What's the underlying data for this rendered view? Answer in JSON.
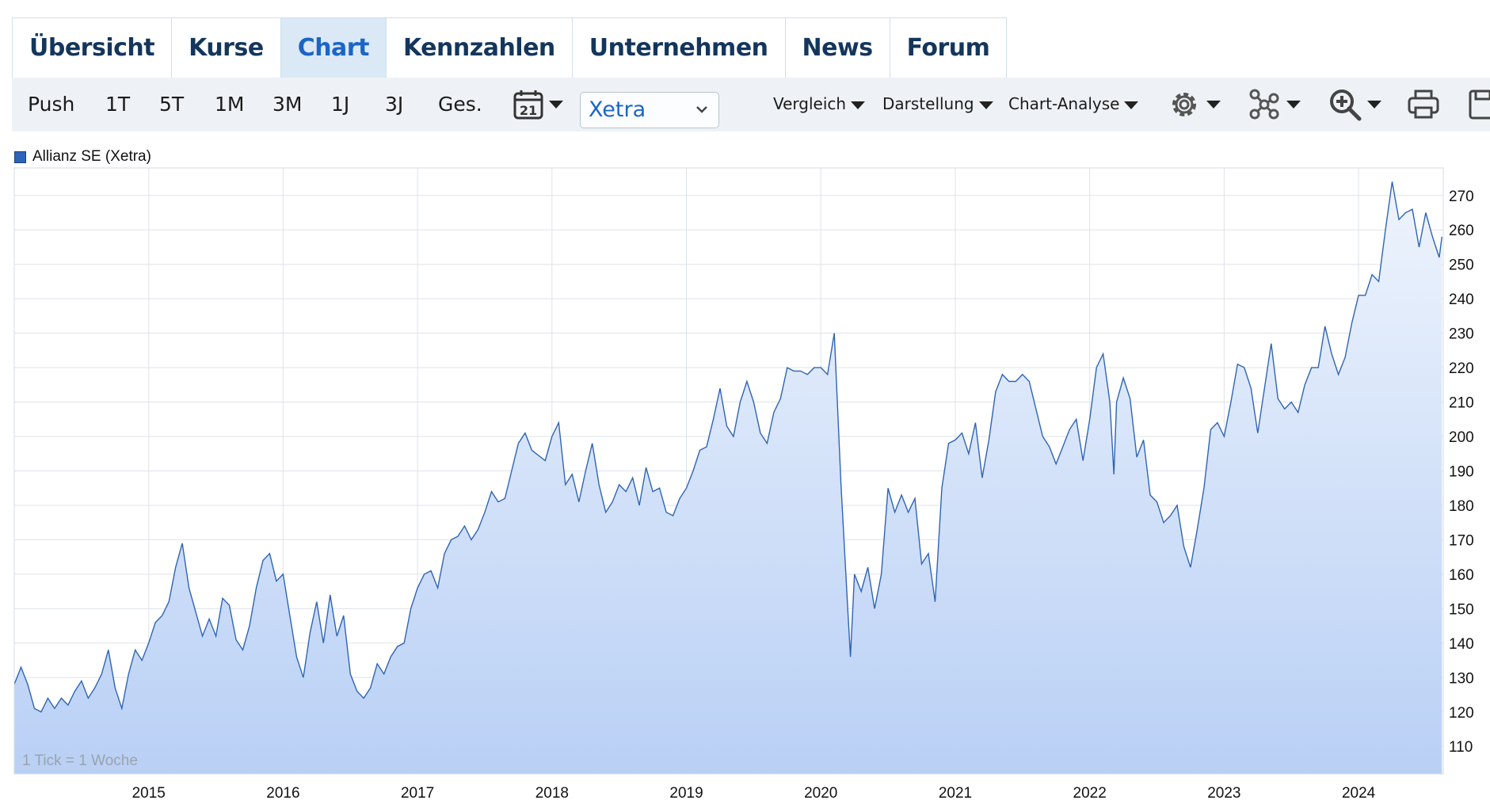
{
  "tabs": [
    {
      "label": "Übersicht",
      "active": false
    },
    {
      "label": "Kurse",
      "active": false
    },
    {
      "label": "Chart",
      "active": true
    },
    {
      "label": "Kennzahlen",
      "active": false
    },
    {
      "label": "Unternehmen",
      "active": false
    },
    {
      "label": "News",
      "active": false
    },
    {
      "label": "Forum",
      "active": false
    }
  ],
  "toolbar": {
    "ranges": [
      "Push",
      "1T",
      "5T",
      "1M",
      "3M",
      "1J",
      "3J",
      "Ges."
    ],
    "calendar_day": "21",
    "exchange_select": "Xetra",
    "dropdowns": [
      "Vergleich",
      "Darstellung",
      "Chart-Analyse"
    ],
    "icons": [
      "calendar-icon",
      "gear-icon",
      "indicator-network-icon",
      "zoom-in-icon",
      "print-icon",
      "save-icon"
    ]
  },
  "legend": {
    "label": "Allianz SE (Xetra)",
    "color": "#2d63b8"
  },
  "tick_note": "1 Tick = 1 Woche",
  "colors": {
    "line": "#2f64b6",
    "fill_top": "#eef4fd",
    "fill_bottom": "#b9d0f5",
    "grid": "#dde3ea"
  },
  "chart_data": {
    "type": "area",
    "series": [
      {
        "name": "Allianz SE (Xetra)",
        "values_x": "year",
        "values": [
          [
            2014.0,
            128
          ],
          [
            2014.05,
            133
          ],
          [
            2014.1,
            128
          ],
          [
            2014.15,
            121
          ],
          [
            2014.2,
            120
          ],
          [
            2014.25,
            124
          ],
          [
            2014.3,
            121
          ],
          [
            2014.35,
            124
          ],
          [
            2014.4,
            122
          ],
          [
            2014.45,
            126
          ],
          [
            2014.5,
            129
          ],
          [
            2014.55,
            124
          ],
          [
            2014.6,
            127
          ],
          [
            2014.65,
            131
          ],
          [
            2014.7,
            138
          ],
          [
            2014.75,
            127
          ],
          [
            2014.8,
            121
          ],
          [
            2014.85,
            131
          ],
          [
            2014.9,
            138
          ],
          [
            2014.95,
            135
          ],
          [
            2015.0,
            140
          ],
          [
            2015.05,
            146
          ],
          [
            2015.1,
            148
          ],
          [
            2015.15,
            152
          ],
          [
            2015.2,
            162
          ],
          [
            2015.25,
            169
          ],
          [
            2015.3,
            156
          ],
          [
            2015.35,
            149
          ],
          [
            2015.4,
            142
          ],
          [
            2015.45,
            147
          ],
          [
            2015.5,
            142
          ],
          [
            2015.55,
            153
          ],
          [
            2015.6,
            151
          ],
          [
            2015.65,
            141
          ],
          [
            2015.7,
            138
          ],
          [
            2015.75,
            145
          ],
          [
            2015.8,
            156
          ],
          [
            2015.85,
            164
          ],
          [
            2015.9,
            166
          ],
          [
            2015.95,
            158
          ],
          [
            2016.0,
            160
          ],
          [
            2016.05,
            148
          ],
          [
            2016.1,
            136
          ],
          [
            2016.15,
            130
          ],
          [
            2016.2,
            143
          ],
          [
            2016.25,
            152
          ],
          [
            2016.3,
            140
          ],
          [
            2016.35,
            154
          ],
          [
            2016.4,
            142
          ],
          [
            2016.45,
            148
          ],
          [
            2016.5,
            131
          ],
          [
            2016.55,
            126
          ],
          [
            2016.6,
            124
          ],
          [
            2016.65,
            127
          ],
          [
            2016.7,
            134
          ],
          [
            2016.75,
            131
          ],
          [
            2016.8,
            136
          ],
          [
            2016.85,
            139
          ],
          [
            2016.9,
            140
          ],
          [
            2016.95,
            150
          ],
          [
            2017.0,
            156
          ],
          [
            2017.05,
            160
          ],
          [
            2017.1,
            161
          ],
          [
            2017.15,
            156
          ],
          [
            2017.2,
            166
          ],
          [
            2017.25,
            170
          ],
          [
            2017.3,
            171
          ],
          [
            2017.35,
            174
          ],
          [
            2017.4,
            170
          ],
          [
            2017.45,
            173
          ],
          [
            2017.5,
            178
          ],
          [
            2017.55,
            184
          ],
          [
            2017.6,
            181
          ],
          [
            2017.65,
            182
          ],
          [
            2017.7,
            190
          ],
          [
            2017.75,
            198
          ],
          [
            2017.8,
            201
          ],
          [
            2017.85,
            196
          ],
          [
            2017.95,
            193
          ],
          [
            2018.0,
            200
          ],
          [
            2018.05,
            204
          ],
          [
            2018.1,
            186
          ],
          [
            2018.15,
            189
          ],
          [
            2018.2,
            181
          ],
          [
            2018.25,
            190
          ],
          [
            2018.3,
            198
          ],
          [
            2018.35,
            186
          ],
          [
            2018.4,
            178
          ],
          [
            2018.45,
            181
          ],
          [
            2018.5,
            186
          ],
          [
            2018.55,
            184
          ],
          [
            2018.6,
            188
          ],
          [
            2018.65,
            180
          ],
          [
            2018.7,
            191
          ],
          [
            2018.75,
            184
          ],
          [
            2018.8,
            185
          ],
          [
            2018.85,
            178
          ],
          [
            2018.9,
            177
          ],
          [
            2018.95,
            182
          ],
          [
            2019.0,
            185
          ],
          [
            2019.05,
            190
          ],
          [
            2019.1,
            196
          ],
          [
            2019.15,
            197
          ],
          [
            2019.2,
            205
          ],
          [
            2019.25,
            214
          ],
          [
            2019.3,
            203
          ],
          [
            2019.35,
            200
          ],
          [
            2019.4,
            210
          ],
          [
            2019.45,
            216
          ],
          [
            2019.5,
            210
          ],
          [
            2019.55,
            201
          ],
          [
            2019.6,
            198
          ],
          [
            2019.65,
            207
          ],
          [
            2019.7,
            211
          ],
          [
            2019.75,
            220
          ],
          [
            2019.8,
            219
          ],
          [
            2019.85,
            219
          ],
          [
            2019.9,
            218
          ],
          [
            2019.95,
            220
          ],
          [
            2020.0,
            220
          ],
          [
            2020.05,
            218
          ],
          [
            2020.1,
            230
          ],
          [
            2020.15,
            186
          ],
          [
            2020.2,
            150
          ],
          [
            2020.22,
            136
          ],
          [
            2020.25,
            160
          ],
          [
            2020.3,
            155
          ],
          [
            2020.35,
            162
          ],
          [
            2020.4,
            150
          ],
          [
            2020.45,
            160
          ],
          [
            2020.5,
            185
          ],
          [
            2020.55,
            178
          ],
          [
            2020.6,
            183
          ],
          [
            2020.65,
            178
          ],
          [
            2020.7,
            182
          ],
          [
            2020.75,
            163
          ],
          [
            2020.8,
            166
          ],
          [
            2020.85,
            152
          ],
          [
            2020.9,
            185
          ],
          [
            2020.95,
            198
          ],
          [
            2021.0,
            199
          ],
          [
            2021.05,
            201
          ],
          [
            2021.1,
            195
          ],
          [
            2021.15,
            204
          ],
          [
            2021.2,
            188
          ],
          [
            2021.25,
            199
          ],
          [
            2021.3,
            213
          ],
          [
            2021.35,
            218
          ],
          [
            2021.4,
            216
          ],
          [
            2021.45,
            216
          ],
          [
            2021.5,
            218
          ],
          [
            2021.55,
            216
          ],
          [
            2021.6,
            208
          ],
          [
            2021.65,
            200
          ],
          [
            2021.7,
            197
          ],
          [
            2021.75,
            192
          ],
          [
            2021.8,
            197
          ],
          [
            2021.85,
            202
          ],
          [
            2021.9,
            205
          ],
          [
            2021.95,
            193
          ],
          [
            2022.0,
            205
          ],
          [
            2022.05,
            220
          ],
          [
            2022.1,
            224
          ],
          [
            2022.15,
            210
          ],
          [
            2022.18,
            189
          ],
          [
            2022.2,
            210
          ],
          [
            2022.25,
            217
          ],
          [
            2022.3,
            211
          ],
          [
            2022.35,
            194
          ],
          [
            2022.4,
            199
          ],
          [
            2022.45,
            183
          ],
          [
            2022.5,
            181
          ],
          [
            2022.55,
            175
          ],
          [
            2022.6,
            177
          ],
          [
            2022.65,
            180
          ],
          [
            2022.7,
            168
          ],
          [
            2022.75,
            162
          ],
          [
            2022.8,
            173
          ],
          [
            2022.85,
            185
          ],
          [
            2022.9,
            202
          ],
          [
            2022.95,
            204
          ],
          [
            2023.0,
            200
          ],
          [
            2023.05,
            210
          ],
          [
            2023.1,
            221
          ],
          [
            2023.15,
            220
          ],
          [
            2023.2,
            214
          ],
          [
            2023.25,
            201
          ],
          [
            2023.3,
            214
          ],
          [
            2023.35,
            227
          ],
          [
            2023.4,
            211
          ],
          [
            2023.45,
            208
          ],
          [
            2023.5,
            210
          ],
          [
            2023.55,
            207
          ],
          [
            2023.6,
            215
          ],
          [
            2023.65,
            220
          ],
          [
            2023.7,
            220
          ],
          [
            2023.75,
            232
          ],
          [
            2023.8,
            224
          ],
          [
            2023.85,
            218
          ],
          [
            2023.9,
            223
          ],
          [
            2023.95,
            233
          ],
          [
            2024.0,
            241
          ],
          [
            2024.05,
            241
          ],
          [
            2024.1,
            247
          ],
          [
            2024.15,
            245
          ],
          [
            2024.2,
            260
          ],
          [
            2024.25,
            274
          ],
          [
            2024.3,
            263
          ],
          [
            2024.35,
            265
          ],
          [
            2024.4,
            266
          ],
          [
            2024.45,
            255
          ],
          [
            2024.5,
            265
          ],
          [
            2024.55,
            258
          ],
          [
            2024.6,
            252
          ],
          [
            2024.62,
            258
          ]
        ]
      }
    ],
    "x_ticks": [
      "2015",
      "2016",
      "2017",
      "2018",
      "2019",
      "2020",
      "2021",
      "2022",
      "2023",
      "2024"
    ],
    "y_ticks": [
      110,
      120,
      130,
      140,
      150,
      160,
      170,
      180,
      190,
      200,
      210,
      220,
      230,
      240,
      250,
      260,
      270
    ],
    "xlim": [
      2014.0,
      2024.63
    ],
    "ylim": [
      102,
      278
    ],
    "y_axis_side": "right",
    "grid": true
  }
}
